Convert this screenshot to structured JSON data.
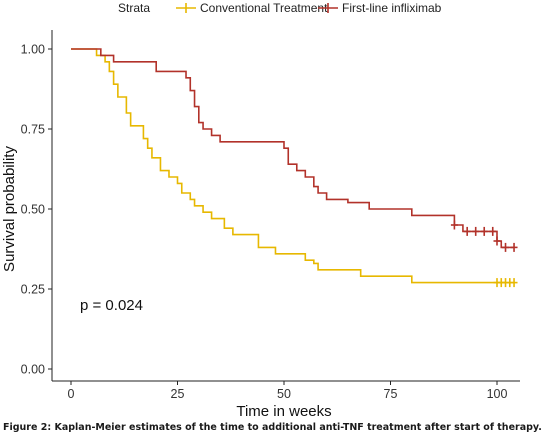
{
  "chart_data": {
    "type": "line",
    "step": true,
    "xlabel": "Time in weeks",
    "ylabel": "Survival probability",
    "xlim": [
      0,
      104
    ],
    "ylim": [
      0,
      1
    ],
    "xticks": [
      "0",
      "25",
      "50",
      "75",
      "100"
    ],
    "xtick_values": [
      0,
      25,
      50,
      75,
      100
    ],
    "yticks": [
      "0.00",
      "0.25",
      "0.50",
      "0.75",
      "1.00"
    ],
    "ytick_values": [
      0,
      0.25,
      0.5,
      0.75,
      1.0
    ],
    "grid": false,
    "legend": {
      "title": "Strata",
      "position": "top",
      "entries": [
        "Conventional Treatment",
        "First-line infliximab"
      ]
    },
    "annotation": "p = 0.024",
    "series": [
      {
        "name": "Conventional Treatment",
        "color": "#E7B800",
        "x": [
          0,
          6,
          8,
          9,
          10,
          11,
          13,
          14,
          17,
          18,
          19,
          21,
          23,
          25,
          26,
          28,
          29,
          31,
          33,
          36,
          38,
          44,
          48,
          55,
          57,
          58,
          65,
          68,
          80,
          102
        ],
        "y": [
          1.0,
          0.98,
          0.96,
          0.93,
          0.89,
          0.85,
          0.8,
          0.76,
          0.72,
          0.69,
          0.66,
          0.62,
          0.6,
          0.58,
          0.55,
          0.53,
          0.51,
          0.49,
          0.47,
          0.44,
          0.42,
          0.38,
          0.36,
          0.34,
          0.33,
          0.31,
          0.31,
          0.29,
          0.27,
          0.27
        ],
        "censored_x": [
          100,
          101,
          102,
          103,
          104
        ],
        "censored_y": [
          0.27,
          0.27,
          0.27,
          0.27,
          0.27
        ]
      },
      {
        "name": "First-line infliximab",
        "color": "#B2322A",
        "x": [
          0,
          7,
          10,
          15,
          20,
          25,
          27,
          28,
          29,
          30,
          31,
          33,
          35,
          45,
          50,
          51,
          53,
          55,
          57,
          58,
          60,
          65,
          70,
          80,
          90,
          92,
          93,
          100,
          101,
          104
        ],
        "y": [
          1.0,
          0.98,
          0.96,
          0.96,
          0.93,
          0.93,
          0.91,
          0.87,
          0.82,
          0.77,
          0.75,
          0.73,
          0.71,
          0.71,
          0.69,
          0.64,
          0.62,
          0.6,
          0.57,
          0.55,
          0.53,
          0.52,
          0.5,
          0.48,
          0.45,
          0.43,
          0.43,
          0.4,
          0.38,
          0.38
        ],
        "censored_x": [
          90,
          93,
          95,
          97,
          99,
          100,
          102,
          104
        ],
        "censored_y": [
          0.45,
          0.43,
          0.43,
          0.43,
          0.43,
          0.4,
          0.38,
          0.38
        ]
      }
    ]
  },
  "caption": "Figure 2: Kaplan-Meier estimates of the time to additional anti-TNF treatment after start of therapy."
}
